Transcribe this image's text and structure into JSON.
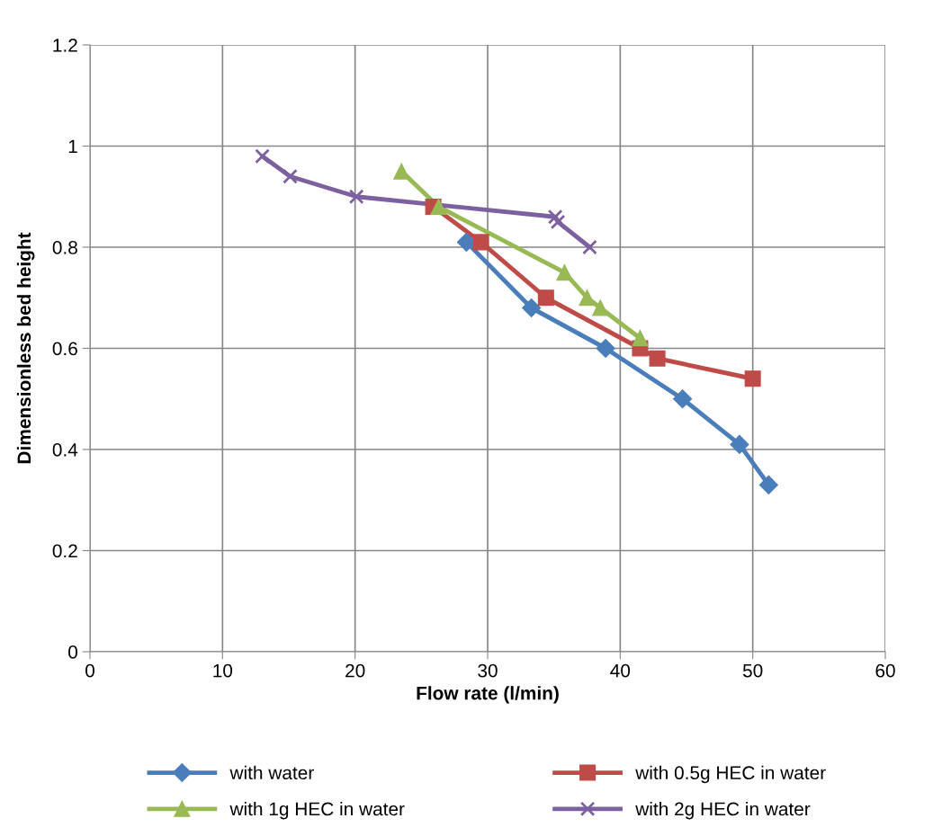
{
  "chart_data": {
    "type": "line",
    "xlabel": "Flow rate (l/min)",
    "ylabel": "Dimensionless bed height",
    "xlim": [
      0,
      60
    ],
    "xticks": [
      0,
      10,
      20,
      30,
      40,
      50,
      60
    ],
    "ylim": [
      0,
      1.2
    ],
    "yticks": [
      0,
      0.2,
      0.4,
      0.6,
      0.8,
      1,
      1.2
    ],
    "grid": true,
    "legend": "bottom",
    "line_style": "solid",
    "series": [
      {
        "name": "with water",
        "color": "#4a7ebb",
        "marker": "diamond",
        "x": [
          28.4,
          33.3,
          38.9,
          44.7,
          49.0,
          51.2
        ],
        "values": [
          0.81,
          0.68,
          0.6,
          0.5,
          0.41,
          0.33
        ]
      },
      {
        "name": "with 0.5g HEC in water",
        "color": "#be4b48",
        "marker": "square",
        "x": [
          25.9,
          29.5,
          34.4,
          41.5,
          42.8,
          50.0
        ],
        "values": [
          0.88,
          0.81,
          0.7,
          0.6,
          0.58,
          0.54
        ]
      },
      {
        "name": "with 1g HEC in water",
        "color": "#98b954",
        "marker": "triangle",
        "x": [
          23.5,
          26.3,
          35.8,
          37.5,
          38.5,
          41.5
        ],
        "values": [
          0.95,
          0.88,
          0.75,
          0.7,
          0.68,
          0.62
        ]
      },
      {
        "name": "with 2g HEC in water",
        "color": "#7d60a0",
        "marker": "cross",
        "x": [
          13.0,
          15.1,
          20.1,
          35.1,
          35.3,
          37.7
        ],
        "values": [
          0.98,
          0.94,
          0.9,
          0.86,
          0.85,
          0.8
        ]
      }
    ]
  }
}
